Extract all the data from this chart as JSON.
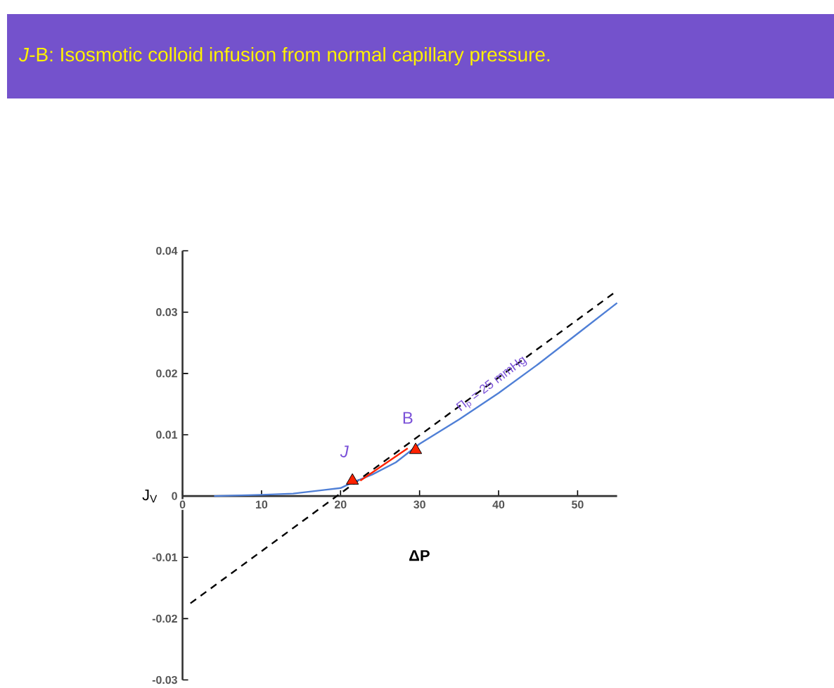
{
  "chart_data": {
    "type": "line",
    "title": "*J*-B: Isosmotic colloid infusion from normal capillary pressure.",
    "xlabel": "ΔP",
    "ylabel": "J$_{V}$",
    "xlim": [
      0,
      55
    ],
    "ylim": [
      -0.03,
      0.04
    ],
    "xticks": [
      0,
      10,
      20,
      30,
      40,
      50
    ],
    "yticks": [
      -0.03,
      -0.02,
      -0.01,
      0,
      0.01,
      0.02,
      0.03,
      0.04
    ],
    "grid": false,
    "series": [
      {
        "line_style": "dashed",
        "color": "#000000",
        "x": [
          1,
          55
        ],
        "values": [
          -0.0175,
          0.0335
        ]
      },
      {
        "name": "Π$_{p}$ = 25 mmHg",
        "color": "#4f7fd6",
        "line_style": "solid",
        "x": [
          4,
          10,
          14,
          18,
          20,
          21.5,
          24,
          27,
          30,
          35,
          40,
          45,
          50,
          55
        ],
        "values": [
          0,
          0.0002,
          0.0004,
          0.001,
          0.0013,
          0.0022,
          0.0035,
          0.0055,
          0.0085,
          0.0125,
          0.0168,
          0.0215,
          0.0265,
          0.0315
        ]
      },
      {
        "color": "#ff2200",
        "line_style": "solid",
        "x": [
          22.5,
          28.5
        ],
        "values": [
          0.0025,
          0.0078
        ]
      },
      {
        "type": "scatter",
        "marker": "triangle",
        "color": "#ff2200",
        "x": [
          21.5,
          29.5
        ],
        "values": [
          0.0025,
          0.0075
        ]
      }
    ],
    "annotations": [
      {
        "text": "*J*",
        "x": 21.5,
        "y": 0.0025
      },
      {
        "text": "B",
        "x": 29.5,
        "y": 0.0075
      }
    ]
  }
}
